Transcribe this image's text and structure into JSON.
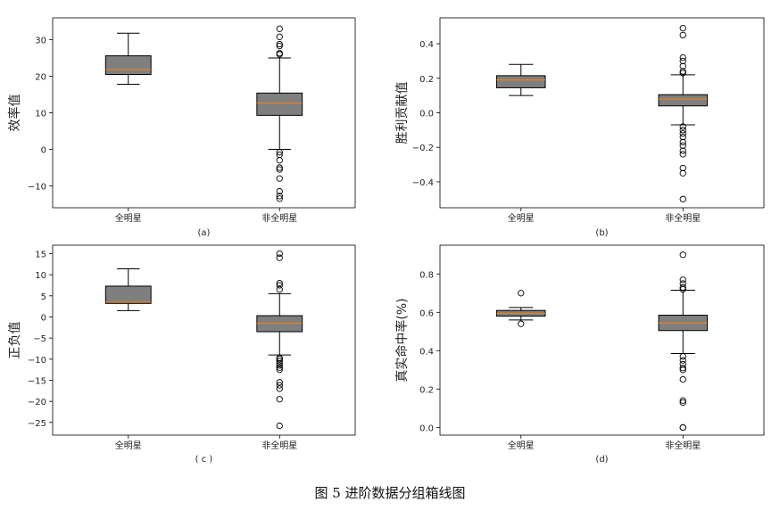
{
  "caption": "图 5   进阶数据分组箱线图",
  "colors": {
    "box_fill": "#7f7f7f",
    "median": "#ff7f0e",
    "line": "#000000",
    "flier": "#000000"
  },
  "chart_data": [
    {
      "type": "box",
      "subtitle": "(a)",
      "ylabel": "效率值",
      "categories": [
        "全明星",
        "非全明星"
      ],
      "ylim": [
        -16,
        36
      ],
      "yticks": [
        -10,
        0,
        10,
        20,
        30
      ],
      "ytick_labels": [
        "−10",
        "0",
        "10",
        "20",
        "30"
      ],
      "boxes": [
        {
          "whislo": 17.8,
          "q1": 20.5,
          "med": 21.8,
          "q3": 25.6,
          "whishi": 31.8,
          "fliers": []
        },
        {
          "whislo": 0.0,
          "q1": 9.3,
          "med": 12.7,
          "q3": 15.4,
          "whishi": 25.0,
          "fliers": [
            -13.5,
            -12.8,
            -11.5,
            -8,
            -5.5,
            -5,
            -3,
            -1.5,
            -0.8,
            26.0,
            26.3,
            28.3,
            28.8,
            30.8,
            33.0
          ]
        }
      ]
    },
    {
      "type": "box",
      "subtitle": "(b)",
      "ylabel": "胜利贡献值",
      "categories": [
        "全明星",
        "非全明星"
      ],
      "ylim": [
        -0.55,
        0.55
      ],
      "yticks": [
        -0.4,
        -0.2,
        0.0,
        0.2,
        0.4
      ],
      "ytick_labels": [
        "−0.4",
        "−0.2",
        "0.0",
        "0.2",
        "0.4"
      ],
      "boxes": [
        {
          "whislo": 0.1,
          "q1": 0.145,
          "med": 0.19,
          "q3": 0.215,
          "whishi": 0.28,
          "fliers": []
        },
        {
          "whislo": -0.07,
          "q1": 0.04,
          "med": 0.08,
          "q3": 0.105,
          "whishi": 0.22,
          "fliers": [
            -0.5,
            -0.35,
            -0.32,
            -0.24,
            -0.22,
            -0.19,
            -0.17,
            -0.14,
            -0.12,
            -0.1,
            -0.08,
            0.23,
            0.24,
            0.27,
            0.3,
            0.32,
            0.45,
            0.49
          ]
        }
      ]
    },
    {
      "type": "box",
      "subtitle": "( c )",
      "ylabel": "正负值",
      "categories": [
        "全明星",
        "非全明星"
      ],
      "ylim": [
        -28,
        17
      ],
      "yticks": [
        -25,
        -20,
        -15,
        -10,
        -5,
        0,
        5,
        10,
        15
      ],
      "ytick_labels": [
        "−25",
        "−20",
        "−15",
        "−10",
        "−5",
        "0",
        "5",
        "10",
        "15"
      ],
      "boxes": [
        {
          "whislo": 1.5,
          "q1": 3.2,
          "med": 3.5,
          "q3": 7.3,
          "whishi": 11.4,
          "fliers": []
        },
        {
          "whislo": -9.0,
          "q1": -3.5,
          "med": -1.5,
          "q3": 0.3,
          "whishi": 5.5,
          "fliers": [
            -25.8,
            -19.5,
            -17,
            -16.2,
            -15.5,
            -12.5,
            -12,
            -11.5,
            -11,
            -10.5,
            -10,
            -9.7,
            6.5,
            7.5,
            8,
            14,
            15
          ]
        }
      ]
    },
    {
      "type": "box",
      "subtitle": "(d)",
      "ylabel": "真实命中率(%)",
      "categories": [
        "全明星",
        "非全明星"
      ],
      "ylim": [
        -0.04,
        0.95
      ],
      "yticks": [
        0.0,
        0.2,
        0.4,
        0.6,
        0.8
      ],
      "ytick_labels": [
        "0.0",
        "0.2",
        "0.4",
        "0.6",
        "0.8"
      ],
      "boxes": [
        {
          "whislo": 0.56,
          "q1": 0.58,
          "med": 0.595,
          "q3": 0.61,
          "whishi": 0.625,
          "fliers": [
            0.54,
            0.7
          ]
        },
        {
          "whislo": 0.385,
          "q1": 0.505,
          "med": 0.545,
          "q3": 0.585,
          "whishi": 0.715,
          "fliers": [
            0.0,
            0.0,
            0.13,
            0.14,
            0.25,
            0.3,
            0.31,
            0.33,
            0.35,
            0.37,
            0.72,
            0.73,
            0.75,
            0.77,
            0.9
          ]
        }
      ]
    }
  ]
}
